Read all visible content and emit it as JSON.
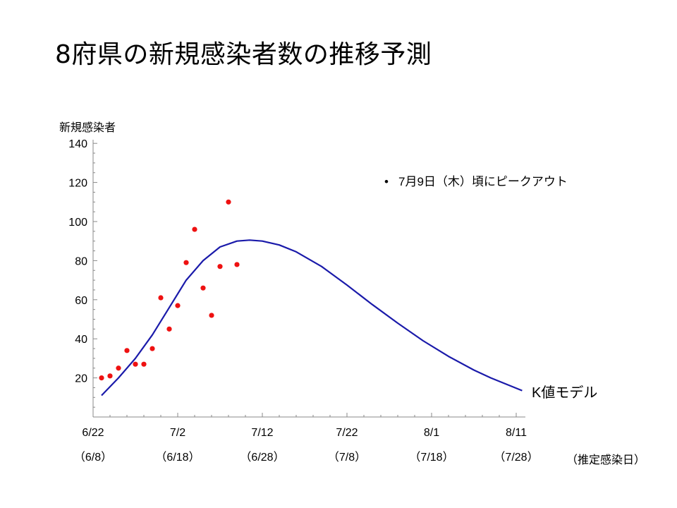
{
  "title": "8府県の新規感染者数の推移予測",
  "chart_data": {
    "type": "scatter",
    "ylabel": "新規感染者",
    "ylim": [
      0,
      140
    ],
    "yticks": [
      20,
      40,
      60,
      80,
      100,
      120,
      140
    ],
    "xlim": [
      0,
      50
    ],
    "xticks": [
      {
        "x": 0,
        "label": "6/22",
        "sublabel": "（6/8）"
      },
      {
        "x": 10,
        "label": "7/2",
        "sublabel": "（6/18）"
      },
      {
        "x": 20,
        "label": "7/12",
        "sublabel": "（6/28）"
      },
      {
        "x": 30,
        "label": "7/22",
        "sublabel": "（7/8）"
      },
      {
        "x": 40,
        "label": "8/1",
        "sublabel": "（7/18）"
      },
      {
        "x": 50,
        "label": "8/11",
        "sublabel": "（7/28）"
      }
    ],
    "secondary_xlabel": "（推定感染日）",
    "series": [
      {
        "kind": "points",
        "color": "#ee1111",
        "x": [
          1,
          2,
          3,
          4,
          5,
          6,
          7,
          8,
          9,
          10,
          11,
          12,
          13,
          14,
          15,
          16,
          17
        ],
        "y": [
          20,
          21,
          25,
          34,
          27,
          27,
          35,
          61,
          45,
          57,
          79,
          96,
          66,
          52,
          77,
          110,
          78
        ]
      },
      {
        "kind": "line",
        "name": "K値モデル",
        "color": "#1a1aaa",
        "x": [
          1,
          3,
          5,
          7,
          9,
          11,
          13,
          15,
          17,
          18.5,
          20,
          22,
          24,
          27,
          30,
          33,
          36,
          39,
          42,
          45,
          47,
          50.7
        ],
        "y": [
          11,
          20,
          30,
          42,
          56,
          70,
          80,
          87,
          90,
          90.5,
          90,
          88,
          84.5,
          77,
          67.5,
          57.5,
          48,
          39,
          31,
          24,
          20,
          13.5
        ]
      }
    ],
    "annotations": [
      "7月9日（木）頃にピークアウト"
    ]
  }
}
